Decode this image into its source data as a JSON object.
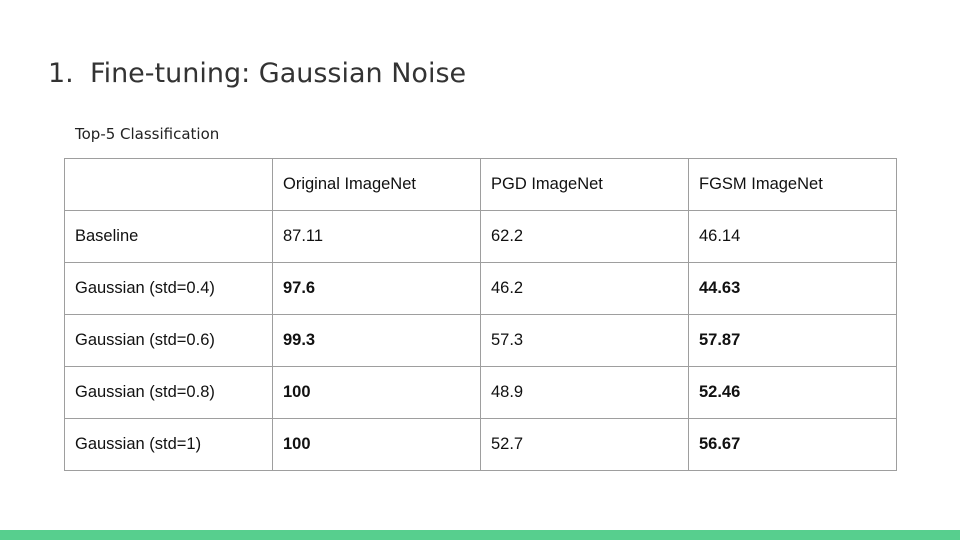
{
  "slide": {
    "title_number": "1.",
    "title": "Fine-tuning: Gaussian Noise",
    "subtitle": "Top-5 Classification"
  },
  "table": {
    "headers": [
      "",
      "Original ImageNet",
      "PGD ImageNet",
      "FGSM ImageNet"
    ],
    "rows": [
      [
        "Baseline",
        "87.11",
        "62.2",
        "46.14"
      ],
      [
        "Gaussian (std=0.4)",
        "97.6",
        "46.2",
        "44.63"
      ],
      [
        "Gaussian (std=0.6)",
        "99.3",
        "57.3",
        "57.87"
      ],
      [
        "Gaussian (std=0.8)",
        "100",
        "48.9",
        "52.46"
      ],
      [
        "Gaussian (std=1)",
        "100",
        "52.7",
        "56.67"
      ]
    ]
  },
  "colors": {
    "accent_bar": "#57cf8e",
    "table_border": "#9e9e9e"
  }
}
